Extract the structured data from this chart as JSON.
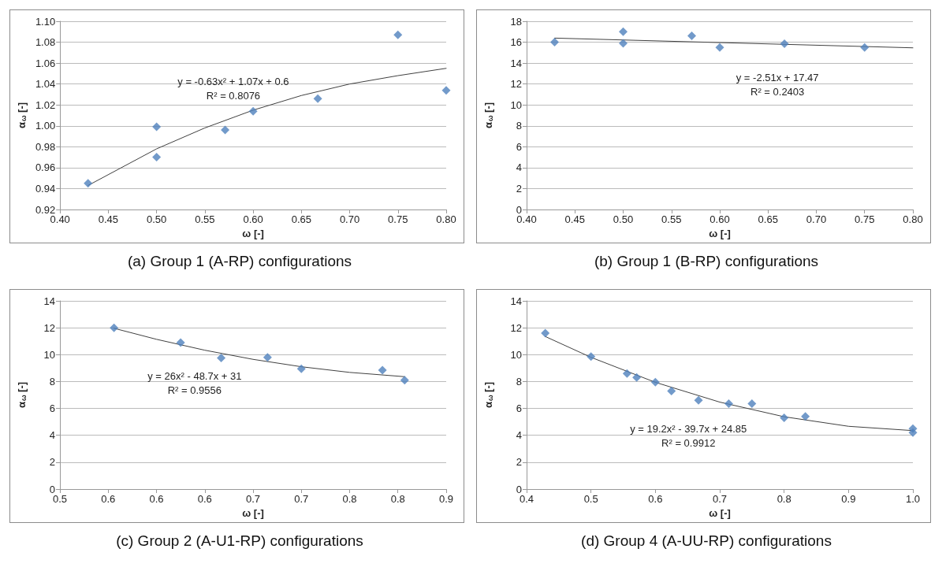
{
  "chart_data": [
    {
      "type": "scatter",
      "title": "(a) Group 1 (A-RP) configurations",
      "xlabel": "ω [-]",
      "ylabel": "α$_{ω}$ [-]",
      "marker": "diamond",
      "grid": "y",
      "xlim": [
        0.4,
        0.8
      ],
      "xticks": [
        {
          "value": 0.4,
          "label": "0.40"
        },
        0.45,
        {
          "value": 0.5,
          "label": "0.50"
        },
        0.55,
        {
          "value": 0.6,
          "label": "0.60"
        },
        0.65,
        {
          "value": 0.7,
          "label": "0.70"
        },
        0.75,
        {
          "value": 0.8,
          "label": "0.80"
        }
      ],
      "ylim": [
        0.92,
        1.1
      ],
      "yticks": [
        0.92,
        0.94,
        0.96,
        0.98,
        {
          "value": 1.0,
          "label": "1.00"
        },
        1.02,
        1.04,
        1.06,
        1.08,
        {
          "value": 1.1,
          "label": "1.10"
        }
      ],
      "series": [
        {
          "type": "scatter",
          "color": "#4f81bd",
          "x": [
            0.429,
            0.5,
            0.5,
            0.571,
            0.6,
            0.667,
            0.75,
            0.8
          ],
          "values": [
            0.945,
            0.999,
            0.97,
            0.996,
            1.014,
            1.026,
            1.087,
            1.034
          ]
        },
        {
          "type": "line",
          "color": "#404040",
          "marker": "none",
          "x": [
            0.429,
            0.5,
            0.55,
            0.6,
            0.65,
            0.7,
            0.75,
            0.8
          ],
          "values": [
            0.943,
            0.978,
            0.998,
            1.015,
            1.029,
            1.04,
            1.048,
            1.055
          ]
        }
      ],
      "annotations": [
        "y = -0.63x² + 1.07x + 0.6",
        "R² = 0.8076"
      ]
    },
    {
      "type": "scatter",
      "title": "(b) Group 1 (B-RP) configurations",
      "xlabel": "ω [-]",
      "ylabel": "α$_{ω}$ [-]",
      "marker": "diamond",
      "grid": "y",
      "xlim": [
        0.4,
        0.8
      ],
      "xticks": [
        {
          "value": 0.4,
          "label": "0.40"
        },
        0.45,
        {
          "value": 0.5,
          "label": "0.50"
        },
        0.55,
        {
          "value": 0.6,
          "label": "0.60"
        },
        0.65,
        {
          "value": 0.7,
          "label": "0.70"
        },
        0.75,
        {
          "value": 0.8,
          "label": "0.80"
        }
      ],
      "ylim": [
        0,
        18
      ],
      "yticks": [
        0,
        2,
        4,
        6,
        8,
        10,
        12,
        14,
        16,
        18
      ],
      "series": [
        {
          "type": "scatter",
          "color": "#4f81bd",
          "x": [
            0.429,
            0.5,
            0.5,
            0.571,
            0.6,
            0.667,
            0.75
          ],
          "values": [
            16.0,
            17.0,
            15.9,
            16.6,
            15.5,
            15.85,
            15.5
          ]
        },
        {
          "type": "line",
          "color": "#404040",
          "marker": "none",
          "x": [
            0.429,
            0.8
          ],
          "values": [
            16.39,
            15.46
          ]
        }
      ],
      "annotations": [
        "y = -2.51x + 17.47",
        "R² = 0.2403"
      ]
    },
    {
      "type": "scatter",
      "title": "(c) Group 2 (A-U1-RP) configurations",
      "xlabel": "ω [-]",
      "ylabel": "α$_{ω}$ [-]",
      "marker": "diamond",
      "grid": "y",
      "xlim": [
        0.5,
        0.9
      ],
      "xticks": [
        0.5,
        {
          "value": 0.55,
          "label": "0.6"
        },
        0.6,
        {
          "value": 0.65,
          "label": "0.6"
        },
        0.7,
        {
          "value": 0.75,
          "label": "0.7"
        },
        0.8,
        {
          "value": 0.85,
          "label": "0.8"
        },
        0.9
      ],
      "ylim": [
        0,
        14
      ],
      "yticks": [
        0,
        2,
        4,
        6,
        8,
        10,
        12,
        14
      ],
      "series": [
        {
          "type": "scatter",
          "color": "#4f81bd",
          "x": [
            0.556,
            0.625,
            0.667,
            0.715,
            0.75,
            0.834,
            0.857
          ],
          "values": [
            12.0,
            10.9,
            9.75,
            9.8,
            8.95,
            8.85,
            8.1
          ]
        },
        {
          "type": "line",
          "color": "#404040",
          "marker": "none",
          "x": [
            0.556,
            0.6,
            0.65,
            0.7,
            0.75,
            0.8,
            0.857
          ],
          "values": [
            11.96,
            11.14,
            10.33,
            9.65,
            9.1,
            8.68,
            8.36
          ]
        }
      ],
      "annotations": [
        "y = 26x² - 48.7x + 31",
        "R² = 0.9556"
      ]
    },
    {
      "type": "scatter",
      "title": "(d) Group 4 (A-UU-RP) configurations",
      "xlabel": "ω [-]",
      "ylabel": "α$_{ω}$ [-]",
      "marker": "diamond",
      "grid": "y",
      "xlim": [
        0.4,
        1.0
      ],
      "xticks": [
        0.4,
        0.5,
        0.6,
        0.7,
        0.8,
        0.9,
        {
          "value": 1.0,
          "label": "1.0"
        }
      ],
      "ylim": [
        0,
        14
      ],
      "yticks": [
        0,
        2,
        4,
        6,
        8,
        10,
        12,
        14
      ],
      "series": [
        {
          "type": "scatter",
          "color": "#4f81bd",
          "x": [
            0.429,
            0.5,
            0.556,
            0.571,
            0.6,
            0.625,
            0.667,
            0.714,
            0.75,
            0.8,
            0.833,
            1.0,
            1.0
          ],
          "values": [
            11.6,
            9.85,
            8.6,
            8.3,
            7.95,
            7.3,
            6.6,
            6.35,
            6.35,
            5.3,
            5.4,
            4.5,
            4.2
          ]
        },
        {
          "type": "line",
          "color": "#404040",
          "marker": "none",
          "x": [
            0.429,
            0.5,
            0.6,
            0.7,
            0.8,
            0.9,
            1.0
          ],
          "values": [
            11.35,
            9.8,
            7.94,
            6.47,
            5.38,
            4.67,
            4.35
          ]
        }
      ],
      "annotations": [
        "y = 19.2x² - 39.7x + 24.85",
        "R² = 0.9912"
      ]
    }
  ]
}
